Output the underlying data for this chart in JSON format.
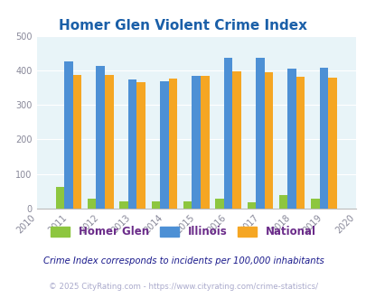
{
  "title": "Homer Glen Violent Crime Index",
  "years": [
    2010,
    2011,
    2012,
    2013,
    2014,
    2015,
    2016,
    2017,
    2018,
    2019,
    2020
  ],
  "bar_years": [
    2011,
    2012,
    2013,
    2014,
    2015,
    2016,
    2017,
    2018,
    2019
  ],
  "homer_glen": [
    63,
    28,
    20,
    22,
    22,
    29,
    17,
    40,
    30
  ],
  "illinois": [
    426,
    413,
    374,
    369,
    383,
    437,
    437,
    404,
    407
  ],
  "national": [
    387,
    387,
    367,
    376,
    384,
    397,
    394,
    381,
    379
  ],
  "color_homer_glen": "#8dc63f",
  "color_illinois": "#4d90d5",
  "color_national": "#f5a623",
  "background_color": "#e8f4f8",
  "ylim": [
    0,
    500
  ],
  "yticks": [
    0,
    100,
    200,
    300,
    400,
    500
  ],
  "title_color": "#1a5fa8",
  "legend_label_homer": "Homer Glen",
  "legend_label_illinois": "Illinois",
  "legend_label_national": "National",
  "legend_text_color": "#6b2c8a",
  "footnote1": "Crime Index corresponds to incidents per 100,000 inhabitants",
  "footnote2": "© 2025 CityRating.com - https://www.cityrating.com/crime-statistics/",
  "footnote1_color": "#1a1a8c",
  "footnote2_color": "#aaaacc",
  "bar_width": 0.27
}
